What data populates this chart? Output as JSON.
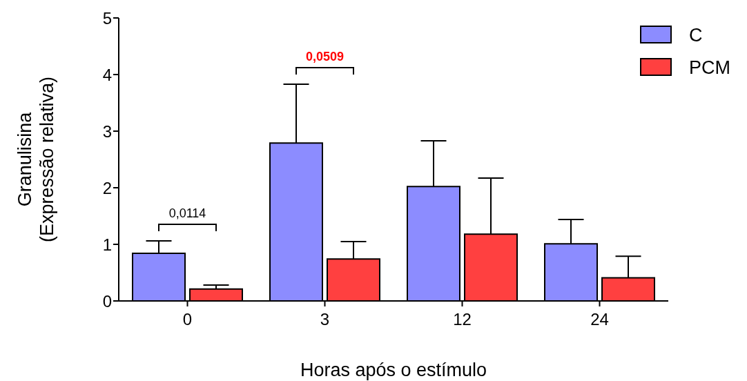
{
  "chart_data": {
    "type": "bar",
    "xlabel": "Horas após o estímulo",
    "ylabel": "Granulisina\n(Expressão relativa)",
    "categories": [
      "0",
      "3",
      "12",
      "24"
    ],
    "series": [
      {
        "name": "C",
        "color": "#8c8cff",
        "values": [
          0.84,
          2.79,
          2.02,
          1.01
        ],
        "errors": [
          [
            0.84,
            1.06
          ],
          [
            2.79,
            3.83
          ],
          [
            2.02,
            2.83
          ],
          [
            1.01,
            1.44
          ]
        ]
      },
      {
        "name": "PCM",
        "color": "#ff4040",
        "values": [
          0.21,
          0.74,
          1.18,
          0.41
        ],
        "errors": [
          [
            0.21,
            0.28
          ],
          [
            0.74,
            1.05
          ],
          [
            1.18,
            2.17
          ],
          [
            0.41,
            0.79
          ]
        ]
      }
    ],
    "annotations": [
      "0,0114",
      "0,0509"
    ],
    "ylim": [
      0,
      5
    ],
    "yticks": [
      0,
      1,
      2,
      3,
      4,
      5
    ],
    "grid": false,
    "legend": "top right"
  }
}
